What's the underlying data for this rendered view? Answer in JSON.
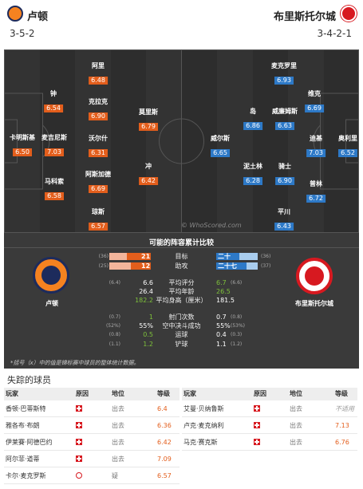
{
  "header": {
    "home_team": "卢顿",
    "away_team": "布里斯托尔城",
    "home_formation": "3-5-2",
    "away_formation": "3-4-2-1"
  },
  "pitch": {
    "watermark": "© WhoScored.com",
    "home_players": [
      {
        "name": "卡明斯基",
        "rating": "6.50"
      },
      {
        "name": "钟",
        "rating": "6.54"
      },
      {
        "name": "麦吉尼斯",
        "rating": "7.03"
      },
      {
        "name": "马科索",
        "rating": "6.58"
      },
      {
        "name": "阿里",
        "rating": "6.48"
      },
      {
        "name": "克拉克",
        "rating": "6.90"
      },
      {
        "name": "沃尔什",
        "rating": "6.31"
      },
      {
        "name": "阿斯加德",
        "rating": "6.69"
      },
      {
        "name": "琼斯",
        "rating": "6.57"
      },
      {
        "name": "莫里斯",
        "rating": "6.79"
      },
      {
        "name": "冲",
        "rating": "6.42"
      }
    ],
    "away_players": [
      {
        "name": "麦克罗里",
        "rating": "6.93"
      },
      {
        "name": "维克",
        "rating": "6.69"
      },
      {
        "name": "岛",
        "rating": "6.86"
      },
      {
        "name": "威廉姆斯",
        "rating": "6.63"
      },
      {
        "name": "迪基",
        "rating": "7.03"
      },
      {
        "name": "奥利里",
        "rating": "6.52"
      },
      {
        "name": "威尔斯",
        "rating": "6.65"
      },
      {
        "name": "泥土林",
        "rating": "6.28"
      },
      {
        "name": "骑士",
        "rating": "6.90"
      },
      {
        "name": "普林",
        "rating": "6.72"
      },
      {
        "name": "平川",
        "rating": "6.43"
      }
    ]
  },
  "comparison": {
    "title": "可能的阵容累计比较",
    "home_name": "卢顿",
    "away_name": "布里斯托尔城",
    "goals": {
      "label": "目标",
      "home": "21",
      "home_prev": "(36)",
      "away": "二十",
      "away_prev": "(36)",
      "home_frac": 0.58,
      "away_frac": 0.56
    },
    "assists": {
      "label": "助攻",
      "home": "12",
      "home_prev": "(25)",
      "away": "二十七",
      "away_prev": "(37)",
      "home_frac": 0.48,
      "away_frac": 0.73
    },
    "stats": [
      {
        "label": "平均评分",
        "home": "6.6",
        "home_prev": "(6.4)",
        "away": "6.7",
        "away_prev": "(6.6)",
        "home_green": false,
        "away_green": true
      },
      {
        "label": "平均年龄",
        "home": "26.4",
        "home_prev": "",
        "away": "26.5",
        "away_prev": "",
        "home_green": false,
        "away_green": true
      },
      {
        "label": "平均身高（厘米）",
        "home": "182.2",
        "home_prev": "",
        "away": "181.5",
        "away_prev": "",
        "home_green": true,
        "away_green": false
      },
      {
        "label": "射门次数",
        "home": "1",
        "home_prev": "(0.7)",
        "away": "0.7",
        "away_prev": "(0.8)",
        "home_green": true,
        "away_green": false
      },
      {
        "label": "空中决斗成功",
        "home": "55%",
        "home_prev": "(52%)",
        "away": "55%",
        "away_prev": "(53%)",
        "home_green": false,
        "away_green": false
      },
      {
        "label": "运球",
        "home": "0.5",
        "home_prev": "(0.8)",
        "away": "0.4",
        "away_prev": "(0.3)",
        "home_green": true,
        "away_green": false
      },
      {
        "label": "铲球",
        "home": "1.2",
        "home_prev": "(1.1)",
        "away": "1.1",
        "away_prev": "(1.2)",
        "home_green": true,
        "away_green": false
      }
    ],
    "note": "*括号（x）中的值是锦标赛中球员的整体统计数据。"
  },
  "missing": {
    "title": "失踪的球员",
    "headers": {
      "player": "玩家",
      "reason": "原因",
      "status": "地位",
      "rating": "等级"
    },
    "home": [
      {
        "player": "香顿·巴蒂斯特",
        "reason": "injury-icon",
        "status": "出去",
        "rating": "6.4"
      },
      {
        "player": "雅各布·布朗",
        "reason": "injury-icon",
        "status": "出去",
        "rating": "6.36"
      },
      {
        "player": "伊莱賽·阿德巴约",
        "reason": "injury-icon",
        "status": "出去",
        "rating": "6.42"
      },
      {
        "player": "阿尔菲·道蒂",
        "reason": "injury-icon",
        "status": "出去",
        "rating": "7.09"
      },
      {
        "player": "卡尔·麦克罗斯",
        "reason": "suspension-icon",
        "status": "疑",
        "rating": "6.57"
      }
    ],
    "away": [
      {
        "player": "艾曼·贝纳鲁斯",
        "reason": "injury-icon",
        "status": "出去",
        "rating": "不适用"
      },
      {
        "player": "卢克·麦克纳利",
        "reason": "injury-icon",
        "status": "出去",
        "rating": "7.13"
      },
      {
        "player": "马克·赛克斯",
        "reason": "injury-icon",
        "status": "出去",
        "rating": "6.76"
      }
    ]
  }
}
